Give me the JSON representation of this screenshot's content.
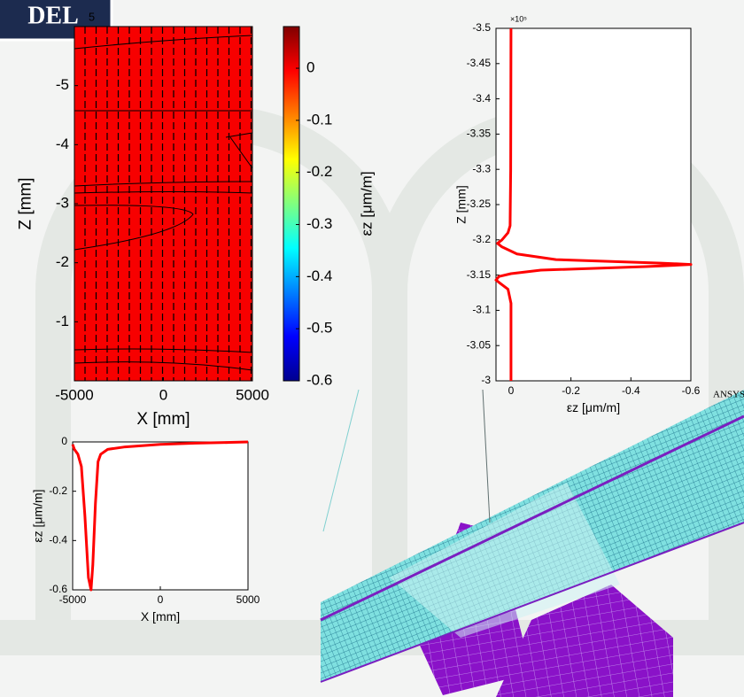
{
  "header": {
    "title": "DEL"
  },
  "chart_data": [
    {
      "type": "heatmap",
      "xlabel": "X [mm]",
      "ylabel": "Z [mm]",
      "y_exponent": "5",
      "xlim": [
        -5000,
        5000
      ],
      "xticks": [
        -5000,
        0,
        5000
      ],
      "ylim": [
        0,
        -6
      ],
      "yticks": [
        -1,
        -2,
        -3,
        -4,
        -5
      ],
      "value": 0,
      "colorbar": {
        "label": "εz [μm/m]",
        "lim": [
          -0.6,
          0.08
        ],
        "ticks": [
          0,
          -0.1,
          -0.2,
          -0.3,
          -0.4,
          -0.5,
          -0.6
        ]
      }
    },
    {
      "type": "line",
      "xlabel": "εz [μm/m]",
      "ylabel": "Z [mm]",
      "y_exponent": "×10⁵",
      "xlim": [
        0.05,
        -0.6
      ],
      "xticks": [
        0,
        -0.2,
        -0.4,
        -0.6
      ],
      "ylim": [
        -3,
        -3.5
      ],
      "yticks": [
        -3.5,
        -3.45,
        -3.4,
        -3.35,
        -3.3,
        -3.25,
        -3.2,
        -3.15,
        -3.1,
        -3.05,
        -3
      ],
      "series": [
        {
          "color": "#ff0000",
          "z": [
            -3.5,
            -3.3,
            -3.22,
            -3.21,
            -3.2,
            -3.195,
            -3.19,
            -3.18,
            -3.172,
            -3.167,
            -3.165,
            -3.162,
            -3.157,
            -3.152,
            -3.148,
            -3.143,
            -3.138,
            -3.13,
            -3.11,
            -3.0
          ],
          "values": [
            0,
            0.001,
            0.003,
            0.01,
            0.03,
            0.045,
            0.03,
            -0.02,
            -0.15,
            -0.5,
            -0.6,
            -0.45,
            -0.1,
            0,
            0.04,
            0.05,
            0.035,
            0.01,
            0,
            0
          ]
        }
      ]
    },
    {
      "type": "line",
      "xlabel": "X [mm]",
      "ylabel": "εz [μm/m]",
      "xlim": [
        -5000,
        5000
      ],
      "xticks": [
        -5000,
        0,
        5000
      ],
      "ylim": [
        -0.6,
        0
      ],
      "yticks": [
        0,
        -0.2,
        -0.4,
        -0.6
      ],
      "series": [
        {
          "color": "#ff0000",
          "x": [
            -5000,
            -4900,
            -4700,
            -4500,
            -4300,
            -4100,
            -3950,
            -3850,
            -3700,
            -3550,
            -3400,
            -3000,
            -2000,
            0,
            2000,
            4000,
            5000
          ],
          "values": [
            -0.01,
            -0.03,
            -0.05,
            -0.1,
            -0.3,
            -0.55,
            -0.6,
            -0.5,
            -0.25,
            -0.08,
            -0.05,
            -0.03,
            -0.02,
            -0.01,
            -0.005,
            -0.002,
            0
          ]
        }
      ]
    }
  ],
  "ansys": {
    "logo": "ANSYS"
  }
}
